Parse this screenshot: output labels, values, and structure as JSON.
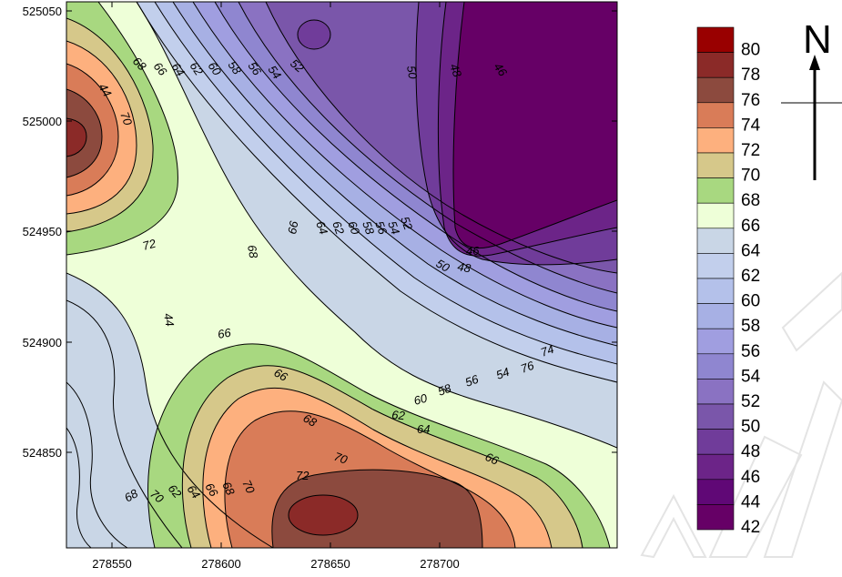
{
  "map": {
    "x_ticks": [
      "278550",
      "278600",
      "278650",
      "278700"
    ],
    "y_ticks": [
      "525050",
      "525000",
      "524950",
      "524900",
      "524850"
    ]
  },
  "legend": {
    "levels": [
      "80",
      "78",
      "76",
      "74",
      "72",
      "70",
      "68",
      "66",
      "64",
      "62",
      "60",
      "58",
      "56",
      "54",
      "52",
      "50",
      "48",
      "46",
      "44",
      "42"
    ],
    "colors": [
      "#990000",
      "#8b2a28",
      "#8c4a3e",
      "#d97c58",
      "#fdb07e",
      "#d6c88a",
      "#a8d880",
      "#eeffd8",
      "#c9d6e6",
      "#c2cfec",
      "#b4c1ea",
      "#a7b0e4",
      "#a09ee0",
      "#8f86d0",
      "#8a72c2",
      "#7a56aa",
      "#703c9a",
      "#6c2488",
      "#600876",
      "#660066"
    ]
  },
  "compass": {
    "letter": "N"
  },
  "contour_labels": [
    "68",
    "66",
    "64",
    "62",
    "60",
    "58",
    "56",
    "54",
    "52",
    "50",
    "48",
    "46",
    "44",
    "70",
    "72",
    "68",
    "66",
    "64",
    "62",
    "60",
    "58",
    "56",
    "54",
    "52",
    "50",
    "48",
    "46",
    "44",
    "66",
    "66",
    "68",
    "70",
    "72",
    "74",
    "76",
    "54",
    "56",
    "58",
    "60",
    "62",
    "64",
    "66",
    "68",
    "70",
    "62",
    "64",
    "66",
    "68",
    "70",
    "72",
    "74"
  ]
}
